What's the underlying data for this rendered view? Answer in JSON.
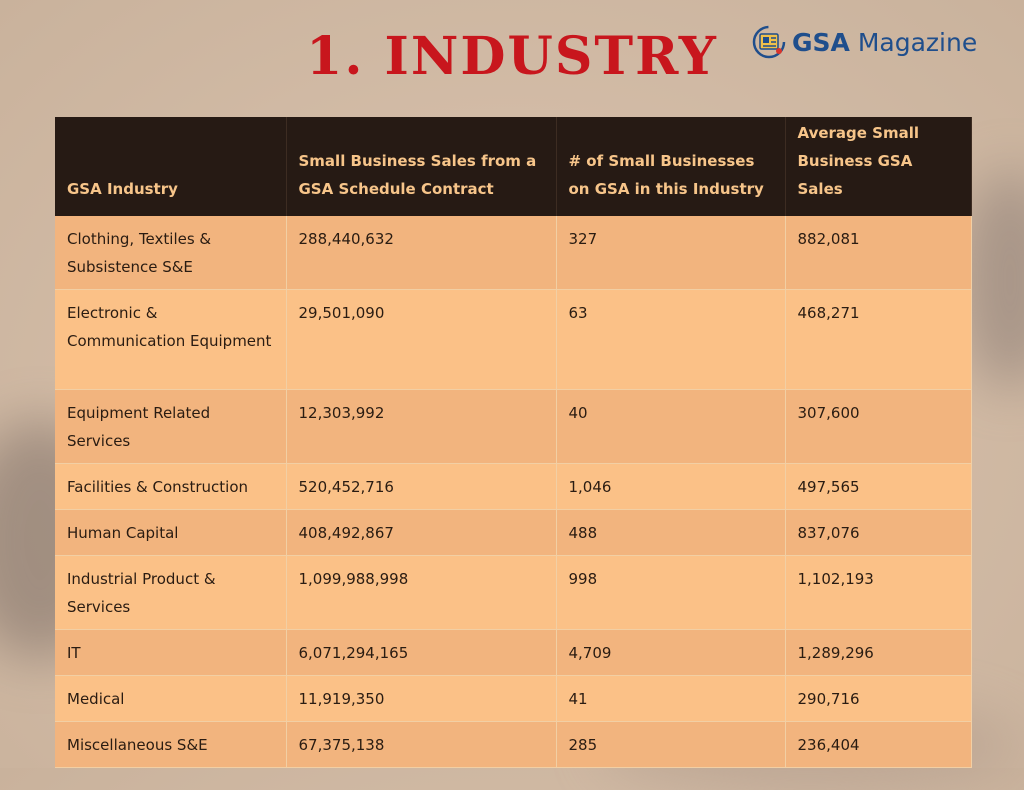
{
  "title": "1. INDUSTRY",
  "logo": {
    "brand": "GSA",
    "suffix": " Magazine"
  },
  "colors": {
    "title": "#c8161d",
    "header_bg": "#261a14",
    "header_text": "#f7c58a",
    "row_a": "#f2b47e",
    "row_b": "#fbc187",
    "logo": "#1f4e8c"
  },
  "table": {
    "headers": [
      "GSA Industry",
      "Small Business Sales from a GSA Schedule Contract",
      "# of Small Businesses on GSA in this Industry",
      "Average Small Business GSA Sales"
    ],
    "rows": [
      [
        "Clothing, Textiles & Subsistence S&E",
        "288,440,632",
        "327",
        "882,081"
      ],
      [
        "Electronic & Communication Equipment",
        "29,501,090",
        "63",
        "468,271"
      ],
      [
        "Equipment Related Services",
        "12,303,992",
        "40",
        "307,600"
      ],
      [
        "Facilities & Construction",
        "520,452,716",
        "1,046",
        "497,565"
      ],
      [
        "Human Capital",
        "408,492,867",
        "488",
        "837,076"
      ],
      [
        "Industrial Product & Services",
        "1,099,988,998",
        "998",
        "1,102,193"
      ],
      [
        "IT",
        "6,071,294,165",
        "4,709",
        "1,289,296"
      ],
      [
        "Medical",
        "11,919,350",
        "41",
        "290,716"
      ],
      [
        "Miscellaneous S&E",
        "67,375,138",
        "285",
        "236,404"
      ]
    ]
  }
}
